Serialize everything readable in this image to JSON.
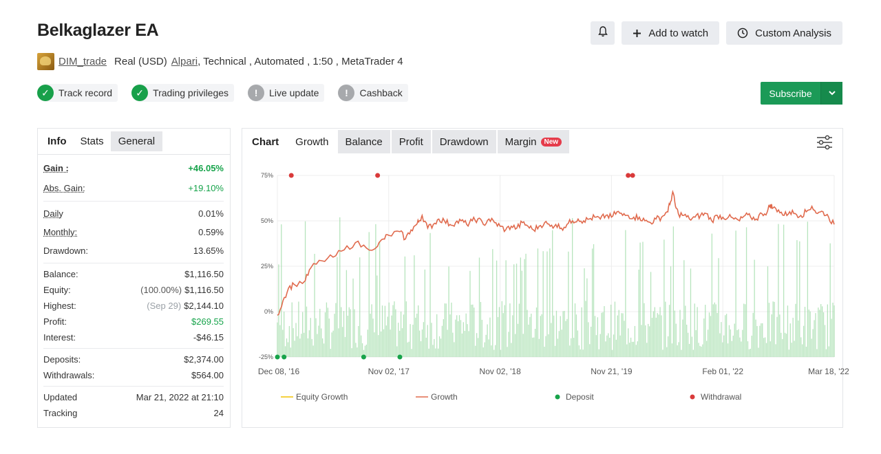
{
  "title": "Belkaglazer EA",
  "top_buttons": {
    "add_watch": "Add to watch",
    "custom_analysis": "Custom Analysis"
  },
  "meta": {
    "author": "DIM_trade",
    "account": "Real (USD)",
    "broker": "Alpari",
    "details": ", Technical , Automated , 1:50 , MetaTrader 4"
  },
  "badges": [
    {
      "label": "Track record",
      "status": "ok"
    },
    {
      "label": "Trading privileges",
      "status": "ok"
    },
    {
      "label": "Live update",
      "status": "warn"
    },
    {
      "label": "Cashback",
      "status": "warn"
    }
  ],
  "subscribe": "Subscribe",
  "info": {
    "tabs": [
      "Info",
      "Stats",
      "General"
    ],
    "gain_label": "Gain :",
    "gain": "+46.05%",
    "abs_gain_label": "Abs. Gain:",
    "abs_gain": "+19.10%",
    "daily_label": "Daily",
    "daily": "0.01%",
    "monthly_label": "Monthly:",
    "monthly": "0.59%",
    "drawdown_label": "Drawdown:",
    "drawdown": "13.65%",
    "balance_label": "Balance:",
    "balance": "$1,116.50",
    "equity_label": "Equity:",
    "equity_pct": "(100.00%)",
    "equity": "$1,116.50",
    "highest_label": "Highest:",
    "highest_date": "(Sep 29)",
    "highest": "$2,144.10",
    "profit_label": "Profit:",
    "profit": "$269.55",
    "interest_label": "Interest:",
    "interest": "-$46.15",
    "deposits_label": "Deposits:",
    "deposits": "$2,374.00",
    "withdrawals_label": "Withdrawals:",
    "withdrawals": "$564.00",
    "updated_label": "Updated",
    "updated": "Mar 21, 2022 at 21:10",
    "tracking_label": "Tracking",
    "tracking": "24"
  },
  "chart": {
    "tabs": [
      "Chart",
      "Growth",
      "Balance",
      "Profit",
      "Drawdown",
      "Margin"
    ],
    "new_badge": "New"
  },
  "chart_data": {
    "type": "line",
    "yticks": [
      "75%",
      "50%",
      "25%",
      "0%",
      "-25%"
    ],
    "ylim": [
      -25,
      75
    ],
    "xticks": [
      "Dec 08, '16",
      "Nov 02, '17",
      "Nov 02, '18",
      "Nov 21, '19",
      "Feb 01, '22",
      "Mar 18, '22"
    ],
    "legend": [
      "Equity Growth",
      "Growth",
      "Deposit",
      "Withdrawal"
    ],
    "colors": {
      "equity": "#f2c200",
      "growth": "#e06a4d",
      "deposit": "#17a34a",
      "withdrawal": "#d93a3a",
      "bars": "#9edba6"
    },
    "series": [
      {
        "name": "Growth",
        "points": [
          [
            0,
            -2
          ],
          [
            0.01,
            6
          ],
          [
            0.02,
            13
          ],
          [
            0.03,
            15
          ],
          [
            0.05,
            17
          ],
          [
            0.06,
            24
          ],
          [
            0.08,
            28
          ],
          [
            0.1,
            30
          ],
          [
            0.12,
            34
          ],
          [
            0.14,
            38
          ],
          [
            0.16,
            35
          ],
          [
            0.18,
            36
          ],
          [
            0.19,
            40
          ],
          [
            0.2,
            42
          ],
          [
            0.22,
            44
          ],
          [
            0.23,
            40
          ],
          [
            0.24,
            45
          ],
          [
            0.25,
            48
          ],
          [
            0.255,
            50
          ],
          [
            0.26,
            53
          ],
          [
            0.27,
            46
          ],
          [
            0.28,
            48
          ],
          [
            0.29,
            51
          ],
          [
            0.3,
            50
          ],
          [
            0.31,
            48
          ],
          [
            0.32,
            49
          ],
          [
            0.33,
            50
          ],
          [
            0.34,
            48
          ],
          [
            0.35,
            50
          ],
          [
            0.36,
            51
          ],
          [
            0.37,
            48
          ],
          [
            0.38,
            51
          ],
          [
            0.39,
            49
          ],
          [
            0.4,
            47
          ],
          [
            0.41,
            45
          ],
          [
            0.42,
            47
          ],
          [
            0.43,
            46
          ],
          [
            0.44,
            49
          ],
          [
            0.45,
            47
          ],
          [
            0.46,
            45
          ],
          [
            0.47,
            47
          ],
          [
            0.48,
            49
          ],
          [
            0.49,
            47
          ],
          [
            0.5,
            48
          ],
          [
            0.51,
            46
          ],
          [
            0.52,
            48
          ],
          [
            0.53,
            50
          ],
          [
            0.54,
            51
          ],
          [
            0.55,
            50
          ],
          [
            0.56,
            51
          ],
          [
            0.57,
            52
          ],
          [
            0.58,
            51
          ],
          [
            0.59,
            53
          ],
          [
            0.6,
            52
          ],
          [
            0.61,
            55
          ],
          [
            0.62,
            53
          ],
          [
            0.63,
            53
          ],
          [
            0.64,
            52
          ],
          [
            0.65,
            52
          ],
          [
            0.66,
            50
          ],
          [
            0.67,
            49
          ],
          [
            0.68,
            51
          ],
          [
            0.69,
            52
          ],
          [
            0.7,
            55
          ],
          [
            0.705,
            59
          ],
          [
            0.71,
            66
          ],
          [
            0.715,
            58
          ],
          [
            0.72,
            54
          ],
          [
            0.73,
            53
          ],
          [
            0.74,
            51
          ],
          [
            0.75,
            52
          ],
          [
            0.76,
            53
          ],
          [
            0.77,
            54
          ],
          [
            0.78,
            50
          ],
          [
            0.79,
            53
          ],
          [
            0.8,
            52
          ],
          [
            0.81,
            52
          ],
          [
            0.82,
            51
          ],
          [
            0.83,
            50
          ],
          [
            0.84,
            53
          ],
          [
            0.85,
            52
          ],
          [
            0.86,
            51
          ],
          [
            0.87,
            54
          ],
          [
            0.88,
            55
          ],
          [
            0.885,
            59
          ],
          [
            0.89,
            57
          ],
          [
            0.9,
            56
          ],
          [
            0.91,
            53
          ],
          [
            0.92,
            55
          ],
          [
            0.93,
            54
          ],
          [
            0.94,
            53
          ],
          [
            0.95,
            55
          ],
          [
            0.96,
            58
          ],
          [
            0.97,
            54
          ],
          [
            0.98,
            55
          ],
          [
            0.99,
            52
          ],
          [
            1.0,
            48
          ]
        ]
      }
    ],
    "deposits_x": [
      0.0,
      0.012,
      0.155,
      0.22
    ],
    "withdrawals_x": [
      0.025,
      0.18,
      0.63,
      0.638
    ]
  }
}
